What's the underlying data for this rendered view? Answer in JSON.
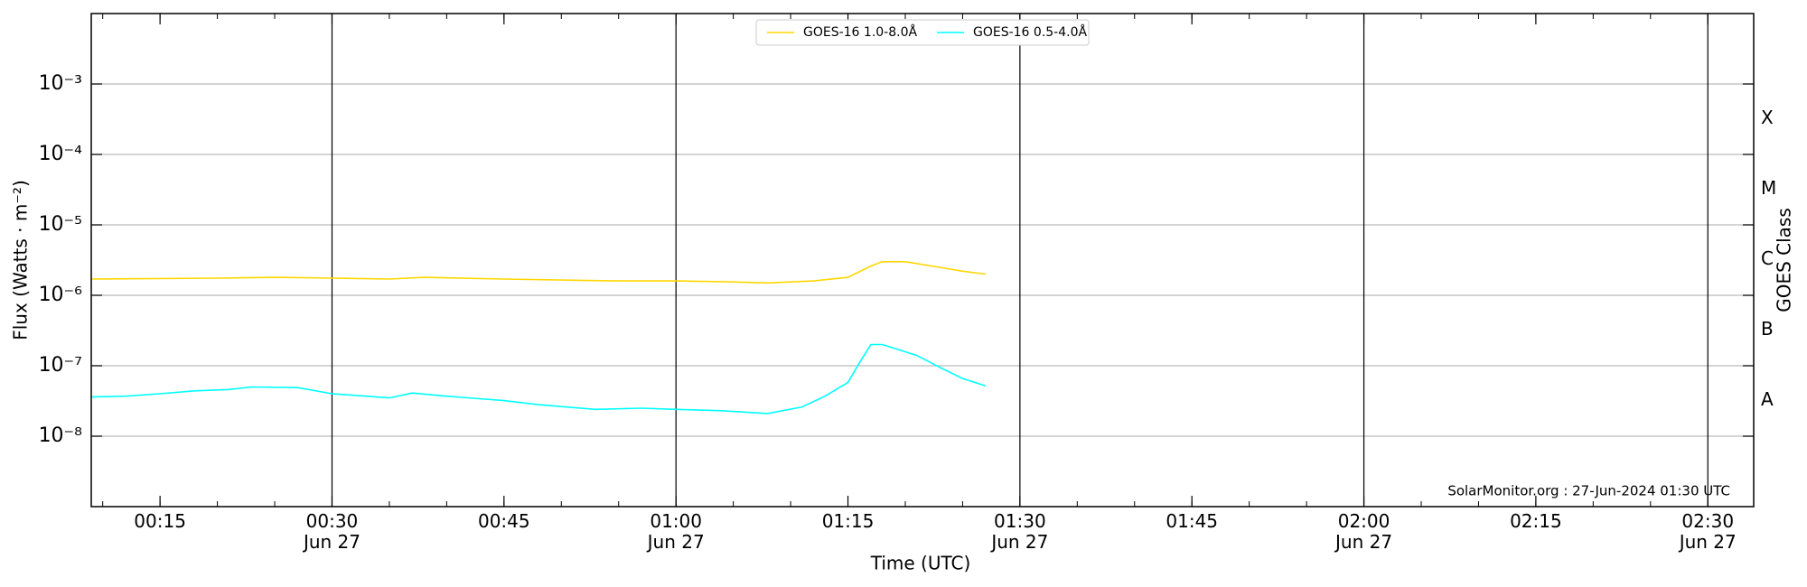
{
  "chart_data": {
    "type": "line",
    "log_y": true,
    "title_annotation": "SolarMonitor.org : 27-Jun-2024 01:30 UTC",
    "xlabel": "Time (UTC)",
    "ylabel": "Flux (Watts · m⁻²)",
    "y2label": "GOES Class",
    "xlim": [
      "00:09",
      "02:34"
    ],
    "xticks": [
      "00:15",
      {
        "value": "00:30",
        "label": "00:30\nJun 27"
      },
      "00:45",
      {
        "value": "01:00",
        "label": "01:00\nJun 27"
      },
      "01:15",
      {
        "value": "01:30",
        "label": "01:30\nJun 27"
      },
      "01:45",
      {
        "value": "02:00",
        "label": "02:00\nJun 27"
      },
      "02:15",
      {
        "value": "02:30",
        "label": "02:30\nJun 27"
      }
    ],
    "ylim": [
      1e-09,
      0.01
    ],
    "yticks": [
      {
        "value": 1e-08,
        "label": "10⁻⁸"
      },
      {
        "value": 1e-07,
        "label": "10⁻⁷"
      },
      {
        "value": 1e-06,
        "label": "10⁻⁶"
      },
      {
        "value": 1e-05,
        "label": "10⁻⁵"
      },
      {
        "value": 0.0001,
        "label": "10⁻⁴"
      },
      {
        "value": 0.001,
        "label": "10⁻³"
      }
    ],
    "y2lim": [
      1e-09,
      0.01
    ],
    "y2ticks": [
      {
        "value": 3.2e-08,
        "label": "A"
      },
      {
        "value": 3.2e-07,
        "label": "B"
      },
      {
        "value": 3.2e-06,
        "label": "C"
      },
      {
        "value": 3.2e-05,
        "label": "M"
      },
      {
        "value": 0.00032,
        "label": "X"
      }
    ],
    "grid": true,
    "legend": "upper center",
    "series": [
      {
        "name": "GOES-16 1.0-8.0Å",
        "color": "#ffd700",
        "x": [
          "00:09",
          "00:20",
          "00:25",
          "00:30",
          "00:35",
          "00:38",
          "00:45",
          "00:55",
          "01:00",
          "01:05",
          "01:08",
          "01:12",
          "01:15",
          "01:17",
          "01:18",
          "01:20",
          "01:23",
          "01:25",
          "01:27"
        ],
        "values": [
          1.7e-06,
          1.75e-06,
          1.8e-06,
          1.75e-06,
          1.7e-06,
          1.8e-06,
          1.7e-06,
          1.6e-06,
          1.6e-06,
          1.55e-06,
          1.5e-06,
          1.6e-06,
          1.8e-06,
          2.6e-06,
          3e-06,
          3e-06,
          2.5e-06,
          2.2e-06,
          2e-06
        ]
      },
      {
        "name": "GOES-16 0.5-4.0Å",
        "color": "#00ffff",
        "x": [
          "00:09",
          "00:12",
          "00:15",
          "00:18",
          "00:21",
          "00:23",
          "00:27",
          "00:30",
          "00:35",
          "00:37",
          "00:40",
          "00:45",
          "00:48",
          "00:53",
          "00:57",
          "01:00",
          "01:04",
          "01:08",
          "01:11",
          "01:13",
          "01:15",
          "01:16",
          "01:17",
          "01:18",
          "01:21",
          "01:23",
          "01:25",
          "01:27"
        ],
        "values": [
          3.6e-08,
          3.7e-08,
          4e-08,
          4.4e-08,
          4.6e-08,
          5e-08,
          4.9e-08,
          4e-08,
          3.5e-08,
          4.1e-08,
          3.7e-08,
          3.2e-08,
          2.8e-08,
          2.4e-08,
          2.5e-08,
          2.4e-08,
          2.3e-08,
          2.1e-08,
          2.6e-08,
          3.7e-08,
          5.8e-08,
          1.1e-07,
          2e-07,
          2e-07,
          1.4e-07,
          9.5e-08,
          6.6e-08,
          5.2e-08
        ]
      }
    ]
  }
}
